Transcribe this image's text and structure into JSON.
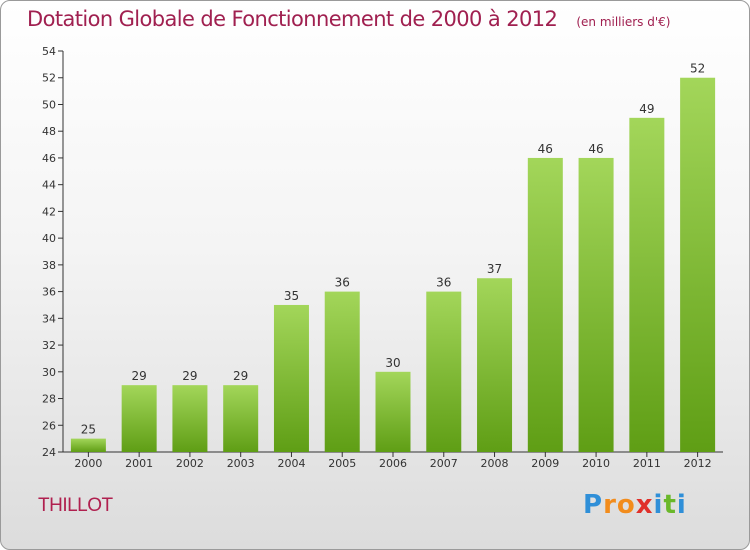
{
  "header": {
    "title": "Dotation Globale de Fonctionnement de 2000 à 2012",
    "unit": "(en milliers d'€)"
  },
  "commune": "THILLOT",
  "logo": {
    "text": "Proxiti",
    "letters": [
      {
        "ch": "P",
        "color": "#2f8fd8"
      },
      {
        "ch": "r",
        "color": "#f28c1c"
      },
      {
        "ch": "o",
        "color": "#f28c1c"
      },
      {
        "ch": "x",
        "color": "#e0302a"
      },
      {
        "ch": "i",
        "color": "#2f8fd8"
      },
      {
        "ch": "t",
        "color": "#6ab82a"
      },
      {
        "ch": "i",
        "color": "#2f8fd8"
      }
    ]
  },
  "chart_data": {
    "type": "bar",
    "title": "Dotation Globale de Fonctionnement de 2000 à 2012",
    "subtitle": "(en milliers d'€)",
    "xlabel": "",
    "ylabel": "",
    "categories": [
      "2000",
      "2001",
      "2002",
      "2003",
      "2004",
      "2005",
      "2006",
      "2007",
      "2008",
      "2009",
      "2010",
      "2011",
      "2012"
    ],
    "values": [
      25,
      29,
      29,
      29,
      35,
      36,
      30,
      36,
      37,
      46,
      46,
      49,
      52
    ],
    "value_labels": [
      "25",
      "29",
      "29",
      "29",
      "35",
      "36",
      "30",
      "36",
      "37",
      "46",
      "46",
      "49",
      "52"
    ],
    "ylim": [
      24,
      54
    ],
    "yticks": [
      24,
      26,
      28,
      30,
      32,
      34,
      36,
      38,
      40,
      42,
      44,
      46,
      48,
      50,
      52,
      54
    ],
    "grid": false,
    "legend": "none",
    "colors": {
      "bar_top": "#a3d65a",
      "bar_bottom": "#5f9e15",
      "axis": "#333333",
      "text": "#333333",
      "title": "#a02050"
    }
  }
}
